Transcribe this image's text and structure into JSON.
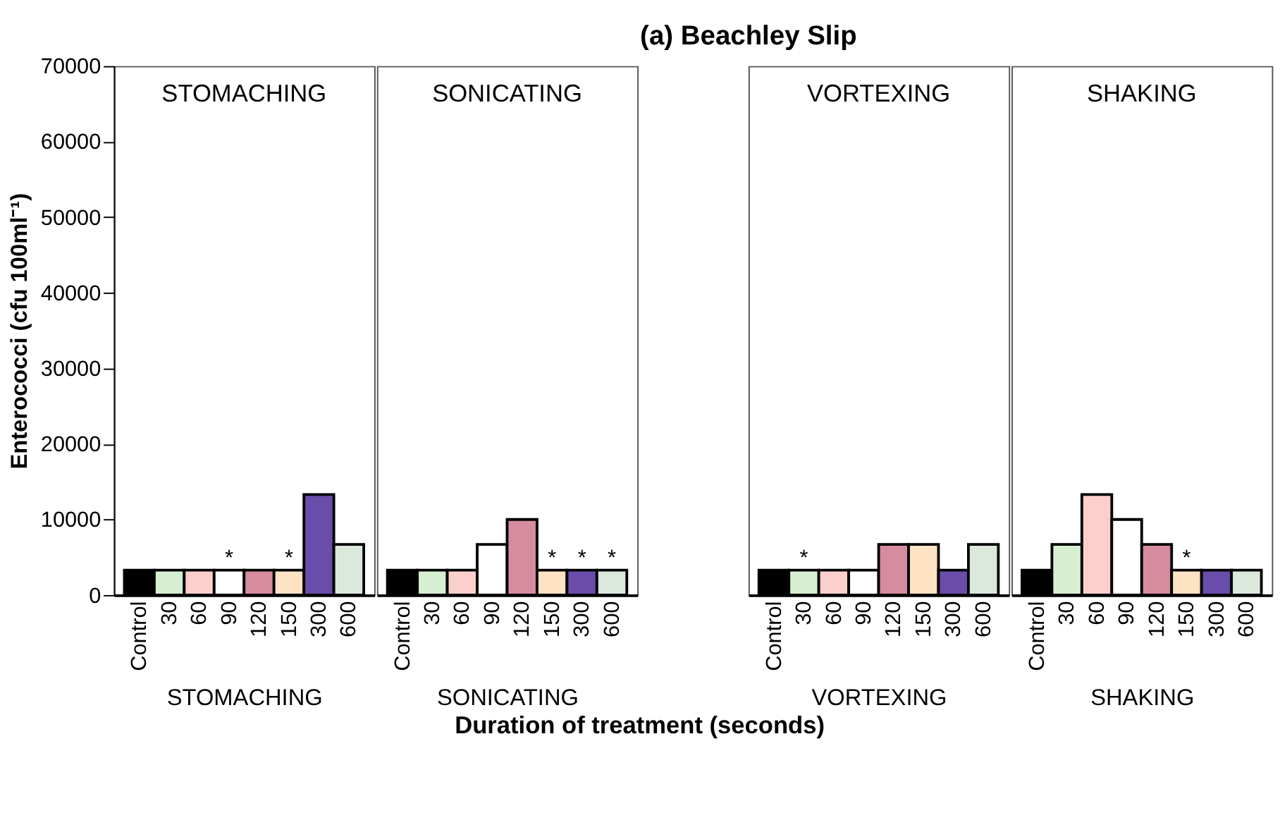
{
  "chart_data": [
    {
      "type": "bar",
      "subtitle": "STOMACHING",
      "xlabel": "STOMACHING",
      "ylabel": "Enterococci (cfu 100ml⁻¹)",
      "categories": [
        "Control",
        "30",
        "60",
        "90",
        "120",
        "150",
        "300",
        "600"
      ],
      "values": [
        3300,
        3300,
        3300,
        3300,
        3300,
        3300,
        13300,
        6700
      ],
      "colors": [
        "#000000",
        "#d6efd0",
        "#fbd0cc",
        "#ffffff",
        "#d58c9e",
        "#fde2c4",
        "#6a4caa",
        "#dbe8dc"
      ],
      "ylim": [
        0,
        70000
      ],
      "yticks": [
        0,
        10000,
        20000,
        30000,
        40000,
        50000,
        60000,
        70000
      ],
      "annotations": [
        "Duration of treatment (seconds)",
        {
          "text": "*",
          "x": "90",
          "y": 3300
        },
        {
          "text": "*",
          "x": "150",
          "y": 3300
        }
      ]
    },
    {
      "type": "bar",
      "subtitle": "SONICATING",
      "xlabel": "SONICATING",
      "categories": [
        "Control",
        "30",
        "60",
        "90",
        "120",
        "150",
        "300",
        "600"
      ],
      "values": [
        3300,
        3300,
        3300,
        6700,
        10000,
        3300,
        3300,
        3300
      ],
      "colors": [
        "#000000",
        "#d6efd0",
        "#fbd0cc",
        "#ffffff",
        "#d58c9e",
        "#fde2c4",
        "#6a4caa",
        "#dbe8dc"
      ],
      "ylim": [
        0,
        70000
      ],
      "yticks": [
        0,
        10000,
        20000,
        30000,
        40000,
        50000,
        60000,
        70000
      ],
      "tick_labels": "x",
      "annotations": [
        {
          "text": "*",
          "x": "150",
          "y": 3300
        },
        {
          "text": "*",
          "x": "300",
          "y": 3300
        },
        {
          "text": "*",
          "x": "600",
          "y": 3300
        }
      ]
    },
    {
      "type": "bar",
      "title": "(a) Beachley Slip",
      "subtitle": "VORTEXING",
      "xlabel": "VORTEXING",
      "categories": [
        "Control",
        "30",
        "60",
        "90",
        "120",
        "150",
        "300",
        "600"
      ],
      "values": [
        3300,
        3300,
        3300,
        3300,
        6700,
        6700,
        3300,
        6700
      ],
      "colors": [
        "#000000",
        "#d6efd0",
        "#fbd0cc",
        "#ffffff",
        "#d58c9e",
        "#fde2c4",
        "#6a4caa",
        "#dbe8dc"
      ],
      "ylim": [
        0,
        70000
      ],
      "yticks": [
        0,
        10000,
        20000,
        30000,
        40000,
        50000,
        60000,
        70000
      ],
      "tick_labels": "x",
      "annotations": [
        {
          "text": "*",
          "x": "30",
          "y": 3300
        }
      ]
    },
    {
      "type": "bar",
      "subtitle": "SHAKING",
      "xlabel": "SHAKING",
      "categories": [
        "Control",
        "30",
        "60",
        "90",
        "120",
        "150",
        "300",
        "600"
      ],
      "values": [
        3300,
        6700,
        13300,
        10000,
        6700,
        3300,
        3300,
        3300
      ],
      "colors": [
        "#000000",
        "#d6efd0",
        "#fbd0cc",
        "#ffffff",
        "#d58c9e",
        "#fde2c4",
        "#6a4caa",
        "#dbe8dc"
      ],
      "ylim": [
        0,
        70000
      ],
      "yticks": [
        0,
        10000,
        20000,
        30000,
        40000,
        50000,
        60000,
        70000
      ],
      "tick_labels": "x",
      "annotations": [
        {
          "text": "*",
          "x": "150",
          "y": 3300
        }
      ]
    }
  ]
}
